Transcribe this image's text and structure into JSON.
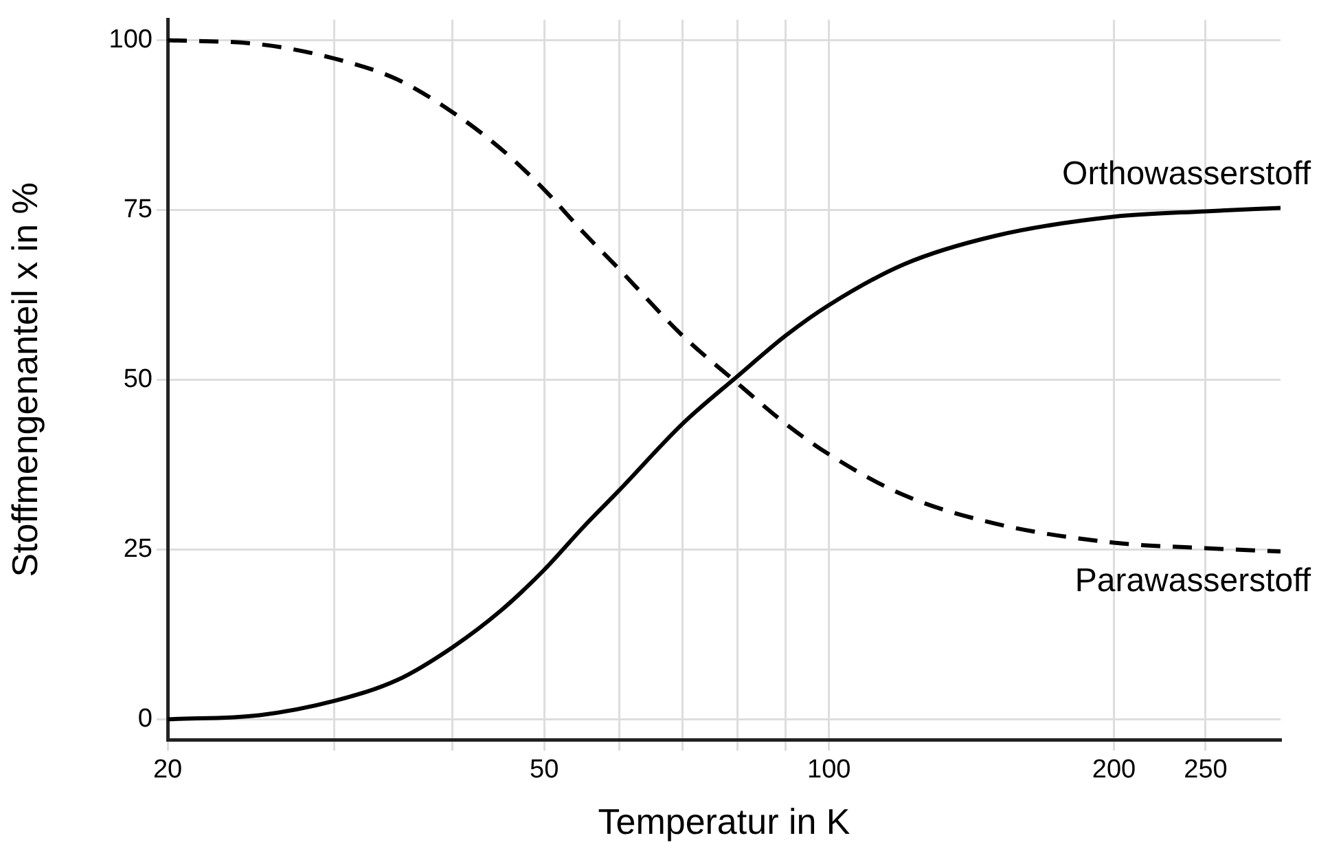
{
  "chart_data": {
    "type": "line",
    "xlabel": "Temperatur in K",
    "ylabel": "Stoffmengenanteil x in %",
    "x": [
      20,
      25,
      30,
      35,
      40,
      45,
      50,
      55,
      60,
      70,
      80,
      90,
      100,
      120,
      150,
      200,
      250,
      300
    ],
    "series": [
      {
        "name": "Orthowasserstoff",
        "color": "#000000",
        "line_style": "solid",
        "values": [
          0,
          0.6,
          2.7,
          5.8,
          10.6,
          16,
          22,
          28.3,
          33.7,
          43.5,
          50.5,
          56.5,
          61,
          67,
          71.2,
          74,
          74.8,
          75.3
        ]
      },
      {
        "name": "Parawasserstoff",
        "color": "#000000",
        "line_style": "dashed",
        "values": [
          100,
          99.4,
          97.3,
          94.2,
          89.4,
          84,
          78,
          71.7,
          66.3,
          56.5,
          49.5,
          43.5,
          39,
          33,
          28.8,
          26,
          25.2,
          24.7
        ]
      }
    ],
    "log": "x",
    "xlim": [
      20,
      300
    ],
    "xticks": [
      20,
      {
        "value": 30,
        "label": null
      },
      {
        "value": 40,
        "label": null
      },
      50,
      {
        "value": 60,
        "label": null
      },
      {
        "value": 70,
        "label": null
      },
      {
        "value": 80,
        "label": null
      },
      {
        "value": 90,
        "label": null
      },
      100,
      200,
      250
    ],
    "ylim": [
      -3,
      103
    ],
    "yticks": [
      0,
      25,
      50,
      75,
      100
    ],
    "grid": true,
    "legend": false,
    "marker": "none"
  }
}
